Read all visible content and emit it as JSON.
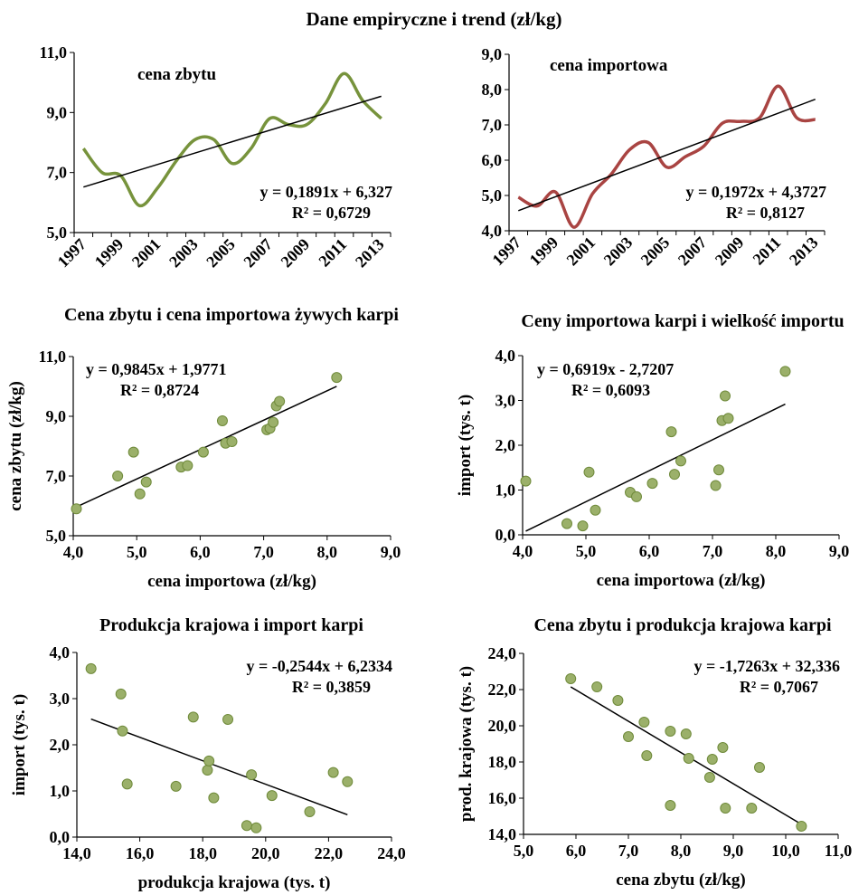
{
  "figure_title": "Dane empiryczne i trend (zł/kg)",
  "colors": {
    "green": "#77933C",
    "red": "#A94442",
    "marker_fill": "#9BB06A",
    "marker_edge": "#6F8A3A",
    "trend": "#000000"
  },
  "chart_data": [
    {
      "type": "line",
      "title": "",
      "series_label": "cena zbytu",
      "x": [
        "1997",
        "1998",
        "1999",
        "2000",
        "2001",
        "2002",
        "2003",
        "2004",
        "2005",
        "2006",
        "2007",
        "2008",
        "2009",
        "2010",
        "2011",
        "2012",
        "2013"
      ],
      "y": [
        7.8,
        7.0,
        6.9,
        5.9,
        6.5,
        7.4,
        8.1,
        8.1,
        7.3,
        7.8,
        8.8,
        8.6,
        8.6,
        9.3,
        10.3,
        9.4,
        8.8
      ],
      "ylim": [
        5.0,
        11.0
      ],
      "yticks": [
        "5,0",
        "7,0",
        "9,0",
        "11,0"
      ],
      "xticks": [
        "1997",
        "1999",
        "2001",
        "2003",
        "2005",
        "2007",
        "2009",
        "2011",
        "2013"
      ],
      "trend": {
        "equation": "y = 0,1891x + 6,327",
        "r2": "R² = 0,6729",
        "slope": 0.1891,
        "intercept": 6.327
      },
      "color": "green",
      "grid": false
    },
    {
      "type": "line",
      "title": "",
      "series_label": "cena importowa",
      "x": [
        "1997",
        "1998",
        "1999",
        "2000",
        "2001",
        "2002",
        "2003",
        "2004",
        "2005",
        "2006",
        "2007",
        "2008",
        "2009",
        "2010",
        "2011",
        "2012",
        "2013"
      ],
      "y": [
        4.95,
        4.7,
        5.1,
        4.1,
        5.05,
        5.6,
        6.3,
        6.5,
        5.8,
        6.1,
        6.4,
        7.05,
        7.1,
        7.2,
        8.1,
        7.2,
        7.15
      ],
      "ylim": [
        4.0,
        9.0
      ],
      "yticks": [
        "4,0",
        "5,0",
        "6,0",
        "7,0",
        "8,0",
        "9,0"
      ],
      "xticks": [
        "1997",
        "1999",
        "2001",
        "2003",
        "2005",
        "2007",
        "2009",
        "2011",
        "2013"
      ],
      "trend": {
        "equation": "y = 0,1972x + 4,3727",
        "r2": "R² = 0,8127",
        "slope": 0.1972,
        "intercept": 4.3727
      },
      "color": "red",
      "grid": false
    },
    {
      "type": "scatter",
      "title": "Cena zbytu i cena importowa żywych karpi",
      "xlabel": "cena importowa (zł/kg)",
      "ylabel": "cena zbytu (zł/kg)",
      "xlim": [
        4.0,
        9.0
      ],
      "ylim": [
        5.0,
        11.0
      ],
      "xticks": [
        "4,0",
        "5,0",
        "6,0",
        "7,0",
        "8,0",
        "9,0"
      ],
      "yticks": [
        "5,0",
        "7,0",
        "9,0",
        "11,0"
      ],
      "points": [
        [
          4.05,
          5.9
        ],
        [
          4.7,
          7.0
        ],
        [
          4.95,
          7.8
        ],
        [
          5.05,
          6.4
        ],
        [
          5.15,
          6.8
        ],
        [
          5.7,
          7.3
        ],
        [
          5.8,
          7.35
        ],
        [
          6.05,
          7.8
        ],
        [
          6.35,
          8.85
        ],
        [
          6.4,
          8.1
        ],
        [
          6.5,
          8.15
        ],
        [
          7.05,
          8.55
        ],
        [
          7.1,
          8.6
        ],
        [
          7.15,
          8.8
        ],
        [
          7.2,
          9.35
        ],
        [
          7.25,
          9.5
        ],
        [
          8.15,
          10.3
        ]
      ],
      "trend": {
        "equation": "y = 0,9845x + 1,9771",
        "r2": "R² = 0,8724",
        "slope": 0.9845,
        "intercept": 1.9771,
        "x_range": [
          4.05,
          8.15
        ]
      },
      "grid": false
    },
    {
      "type": "scatter",
      "title": "Ceny importowa karpi i wielkość importu",
      "xlabel": "cena importowa (zł/kg)",
      "ylabel": "import (tys. t)",
      "xlim": [
        4.0,
        9.0
      ],
      "ylim": [
        0.0,
        4.0
      ],
      "xticks": [
        "4,0",
        "5,0",
        "6,0",
        "7,0",
        "8,0",
        "9,0"
      ],
      "yticks": [
        "0,0",
        "1,0",
        "2,0",
        "3,0",
        "4,0"
      ],
      "points": [
        [
          4.05,
          1.2
        ],
        [
          4.7,
          0.25
        ],
        [
          4.95,
          0.2
        ],
        [
          5.05,
          1.4
        ],
        [
          5.15,
          0.55
        ],
        [
          5.7,
          0.95
        ],
        [
          5.8,
          0.85
        ],
        [
          6.05,
          1.15
        ],
        [
          6.35,
          2.3
        ],
        [
          6.4,
          1.35
        ],
        [
          6.5,
          1.65
        ],
        [
          7.05,
          1.1
        ],
        [
          7.1,
          1.45
        ],
        [
          7.15,
          2.55
        ],
        [
          7.2,
          3.1
        ],
        [
          7.25,
          2.6
        ],
        [
          8.15,
          3.65
        ]
      ],
      "trend": {
        "equation": "y = 0,6919x - 2,7207",
        "r2": "R² = 0,6093",
        "slope": 0.6919,
        "intercept": -2.7207,
        "x_range": [
          4.05,
          8.15
        ]
      },
      "grid": false
    },
    {
      "type": "scatter",
      "title": "Produkcja krajowa i import karpi",
      "xlabel": "produkcja krajowa (tys. t)",
      "ylabel": "import (tys. t)",
      "xlim": [
        14.0,
        24.0
      ],
      "ylim": [
        0.0,
        4.0
      ],
      "xticks": [
        "14,0",
        "16,0",
        "18,0",
        "20,0",
        "22,0",
        "24,0"
      ],
      "yticks": [
        "0,0",
        "1,0",
        "2,0",
        "3,0",
        "4,0"
      ],
      "points": [
        [
          14.45,
          3.65
        ],
        [
          15.4,
          3.1
        ],
        [
          15.45,
          2.3
        ],
        [
          15.6,
          1.15
        ],
        [
          17.15,
          1.1
        ],
        [
          17.7,
          2.6
        ],
        [
          18.15,
          1.45
        ],
        [
          18.2,
          1.65
        ],
        [
          18.35,
          0.85
        ],
        [
          18.8,
          2.55
        ],
        [
          19.4,
          0.25
        ],
        [
          19.55,
          1.35
        ],
        [
          19.7,
          0.2
        ],
        [
          20.2,
          0.9
        ],
        [
          21.4,
          0.55
        ],
        [
          22.15,
          1.4
        ],
        [
          22.6,
          1.2
        ]
      ],
      "trend": {
        "equation": "y = -0,2544x + 6,2334",
        "r2": "R² = 0,3859",
        "slope": -0.2544,
        "intercept": 6.2334,
        "x_range": [
          14.45,
          22.6
        ]
      },
      "grid": false
    },
    {
      "type": "scatter",
      "title": "Cena zbytu i produkcja krajowa karpi",
      "xlabel": "cena zbytu (zł/kg)",
      "ylabel": "prod. krajowa (tys. t)",
      "xlim": [
        5.0,
        11.0
      ],
      "ylim": [
        14.0,
        24.0
      ],
      "xticks": [
        "5,0",
        "6,0",
        "7,0",
        "8,0",
        "9,0",
        "10,0",
        "11,0"
      ],
      "yticks": [
        "14,0",
        "16,0",
        "18,0",
        "20,0",
        "22,0",
        "24,0"
      ],
      "points": [
        [
          5.9,
          22.6
        ],
        [
          6.4,
          22.15
        ],
        [
          6.8,
          21.4
        ],
        [
          7.0,
          19.4
        ],
        [
          7.3,
          20.2
        ],
        [
          7.35,
          18.35
        ],
        [
          7.8,
          19.7
        ],
        [
          7.8,
          15.6
        ],
        [
          8.1,
          19.55
        ],
        [
          8.15,
          18.2
        ],
        [
          8.55,
          17.15
        ],
        [
          8.6,
          18.15
        ],
        [
          8.8,
          18.8
        ],
        [
          8.85,
          15.45
        ],
        [
          9.35,
          15.45
        ],
        [
          9.5,
          17.7
        ],
        [
          10.3,
          14.45
        ]
      ],
      "trend": {
        "equation": "y = -1,7263x + 32,336",
        "r2": "R² = 0,7067",
        "slope": -1.7263,
        "intercept": 32.336,
        "x_range": [
          5.9,
          10.3
        ]
      },
      "grid": false
    }
  ]
}
